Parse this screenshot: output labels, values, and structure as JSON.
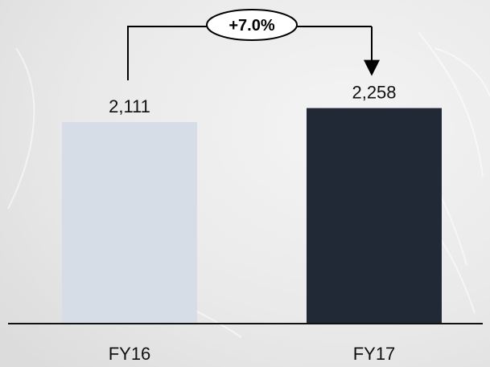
{
  "colors": {
    "background": "#ececec",
    "bar_fy16": "#d6dde6",
    "bar_fy17": "#222936",
    "axis": "#111111"
  },
  "chart_data": {
    "type": "bar",
    "categories": [
      "FY16",
      "FY17"
    ],
    "values": [
      2111,
      2258
    ],
    "value_labels": [
      "2,111",
      "2,258"
    ],
    "annotation": {
      "text": "+7.0%",
      "from": "FY16",
      "to": "FY17"
    },
    "title": "",
    "xlabel": "",
    "ylabel": "",
    "ylim": [
      0,
      2550
    ],
    "grid": false,
    "legend": "none"
  }
}
